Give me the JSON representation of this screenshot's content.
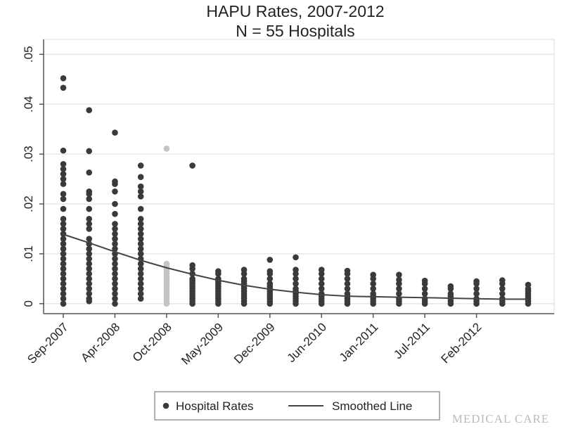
{
  "chart_data": {
    "type": "scatter",
    "title": "HAPU Rates, 2007-2012",
    "subtitle": "N = 55 Hospitals",
    "watermark": "MEDICAL CARE",
    "categories": [
      "Sep-2007",
      null,
      "Apr-2008",
      null,
      "Oct-2008",
      null,
      "May-2009",
      null,
      "Dec-2009",
      null,
      "Jun-2010",
      null,
      "Jan-2011",
      null,
      "Jul-2011",
      null,
      "Feb-2012",
      null,
      null
    ],
    "ylim": [
      -0.002,
      0.053
    ],
    "yticks": [
      0,
      {
        "value": 0.01,
        "label": ".01"
      },
      {
        "value": 0.02,
        "label": ".02"
      },
      {
        "value": 0.03,
        "label": ".03"
      },
      {
        "value": 0.04,
        "label": ".04"
      },
      {
        "value": 0.05,
        "label": ".05"
      }
    ],
    "grid": true,
    "legend": "bottom",
    "series": [
      {
        "name": "Hospital Rates",
        "type": "scatter",
        "color": "#3a3a3a",
        "point_colors": [
          "#3a3a3a",
          "#3a3a3a",
          "#3a3a3a",
          "#3a3a3a",
          "#c4c4c4",
          "#3a3a3a",
          "#3a3a3a",
          "#3a3a3a",
          "#3a3a3a",
          "#3a3a3a",
          "#3a3a3a",
          "#3a3a3a",
          "#3a3a3a",
          "#3a3a3a",
          "#3a3a3a",
          "#3a3a3a",
          "#3a3a3a",
          "#3a3a3a",
          "#3a3a3a"
        ],
        "values": [
          [
            0.0452,
            0.0433,
            0.0307,
            0.028,
            0.027,
            0.026,
            0.025,
            0.024,
            0.022,
            0.021,
            0.019,
            0.017,
            0.016,
            0.015,
            0.014,
            0.013,
            0.012,
            0.011,
            0.01,
            0.009,
            0.008,
            0.007,
            0.006,
            0.005,
            0.004,
            0.003,
            0.002,
            0.001,
            0
          ],
          [
            0.0388,
            0.0306,
            0.0263,
            0.0225,
            0.022,
            0.021,
            0.019,
            0.017,
            0.016,
            0.015,
            0.013,
            0.012,
            0.011,
            0.01,
            0.009,
            0.008,
            0.007,
            0.006,
            0.005,
            0.004,
            0.003,
            0.002,
            0.001,
            0.0005
          ],
          [
            0.0343,
            0.0245,
            0.024,
            0.0225,
            0.02,
            0.018,
            0.016,
            0.015,
            0.014,
            0.013,
            0.012,
            0.011,
            0.01,
            0.009,
            0.008,
            0.007,
            0.006,
            0.005,
            0.004,
            0.003,
            0.002,
            0.001,
            0
          ],
          [
            0.0277,
            0.0254,
            0.0235,
            0.0225,
            0.0215,
            0.019,
            0.017,
            0.016,
            0.015,
            0.014,
            0.013,
            0.012,
            0.011,
            0.01,
            0.009,
            0.008,
            0.007,
            0.006,
            0.005,
            0.004,
            0.003,
            0.002,
            0.001
          ],
          [
            0.0311,
            0.008,
            0.0075,
            0.007,
            0.0065,
            0.006,
            0.0055,
            0.005,
            0.0045,
            0.004,
            0.0035,
            0.003,
            0.0025,
            0.002,
            0.0015,
            0.001,
            0.0005,
            0
          ],
          [
            0.0277,
            0.0077,
            0.007,
            0.006,
            0.005,
            0.0045,
            0.004,
            0.0035,
            0.003,
            0.0025,
            0.002,
            0.0015,
            0.001,
            0.0005,
            0
          ],
          [
            0.0065,
            0.006,
            0.005,
            0.0045,
            0.004,
            0.0035,
            0.003,
            0.0025,
            0.002,
            0.0015,
            0.001,
            0.0005,
            0
          ],
          [
            0.0068,
            0.006,
            0.005,
            0.0045,
            0.004,
            0.0035,
            0.003,
            0.0025,
            0.002,
            0.0015,
            0.001,
            0.0005,
            0
          ],
          [
            0.0088,
            0.0065,
            0.006,
            0.005,
            0.004,
            0.0035,
            0.003,
            0.0025,
            0.002,
            0.0015,
            0.001,
            0.0005,
            0
          ],
          [
            0.0093,
            0.0068,
            0.006,
            0.005,
            0.004,
            0.003,
            0.0025,
            0.002,
            0.0015,
            0.001,
            0.0005,
            0
          ],
          [
            0.0068,
            0.006,
            0.005,
            0.004,
            0.003,
            0.002,
            0.0015,
            0.001,
            0.0005,
            0
          ],
          [
            0.0066,
            0.006,
            0.005,
            0.004,
            0.003,
            0.002,
            0.0015,
            0.001,
            0.0005,
            0
          ],
          [
            0.0058,
            0.005,
            0.004,
            0.003,
            0.002,
            0.0015,
            0.001,
            0.0005,
            0
          ],
          [
            0.0058,
            0.0048,
            0.004,
            0.003,
            0.002,
            0.001,
            0.0005,
            0
          ],
          [
            0.0046,
            0.004,
            0.003,
            0.002,
            0.001,
            0.0005,
            0
          ],
          [
            0.0035,
            0.003,
            0.002,
            0.0015,
            0.001,
            0.0005,
            0
          ],
          [
            0.0045,
            0.004,
            0.003,
            0.002,
            0.001,
            0.0005,
            0
          ],
          [
            0.0047,
            0.004,
            0.003,
            0.002,
            0.001,
            0.0005,
            0
          ],
          [
            0.0038,
            0.003,
            0.0025,
            0.002,
            0.0015,
            0.001,
            0.0005,
            0
          ]
        ]
      },
      {
        "name": "Smoothed Line",
        "type": "line",
        "color": "#444444",
        "values": [
          0.0139,
          0.0122,
          0.0104,
          0.0087,
          0.0072,
          0.0059,
          0.0047,
          0.0037,
          0.0029,
          0.0023,
          0.0018,
          0.0015,
          0.0014,
          0.0013,
          0.0012,
          0.0011,
          0.001,
          0.0009,
          0.0009
        ]
      }
    ]
  }
}
